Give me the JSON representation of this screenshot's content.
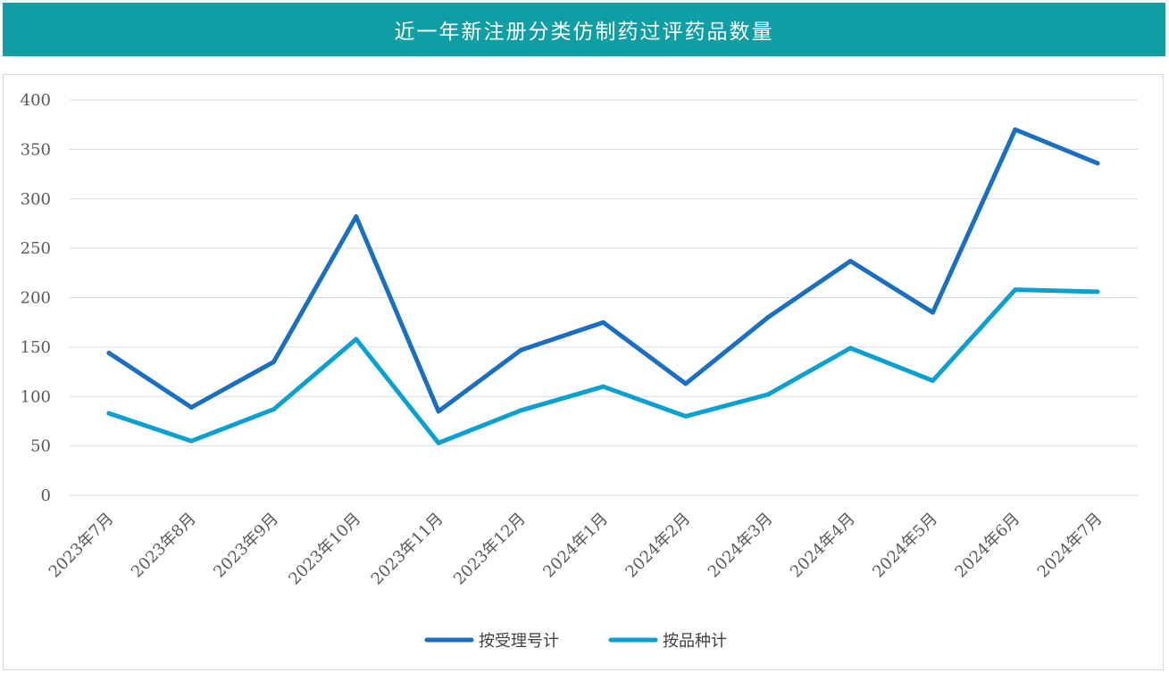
{
  "title": "近一年新注册分类仿制药过评药品数量",
  "colors": {
    "title_bg": "#0e9ea4",
    "series_1": "#1a6fc1",
    "series_2": "#0ba0d2",
    "grid": "#d9d9d9"
  },
  "chart_data": {
    "type": "line",
    "x": [
      "2023年7月",
      "2023年8月",
      "2023年9月",
      "2023年10月",
      "2023年11月",
      "2023年12月",
      "2024年1月",
      "2024年2月",
      "2024年3月",
      "2024年4月",
      "2024年5月",
      "2024年6月",
      "2024年7月"
    ],
    "series": [
      {
        "name": "按受理号计",
        "values": [
          144,
          89,
          135,
          282,
          85,
          147,
          175,
          113,
          180,
          237,
          185,
          370,
          336
        ]
      },
      {
        "name": "按品种计",
        "values": [
          83,
          55,
          87,
          158,
          53,
          86,
          110,
          80,
          102,
          149,
          116,
          208,
          206
        ]
      }
    ],
    "ylim": [
      0,
      400
    ],
    "yticks": [
      0,
      50,
      100,
      150,
      200,
      250,
      300,
      350,
      400
    ],
    "xlabel": "",
    "ylabel": "",
    "grid": true,
    "legend_position": "bottom"
  }
}
